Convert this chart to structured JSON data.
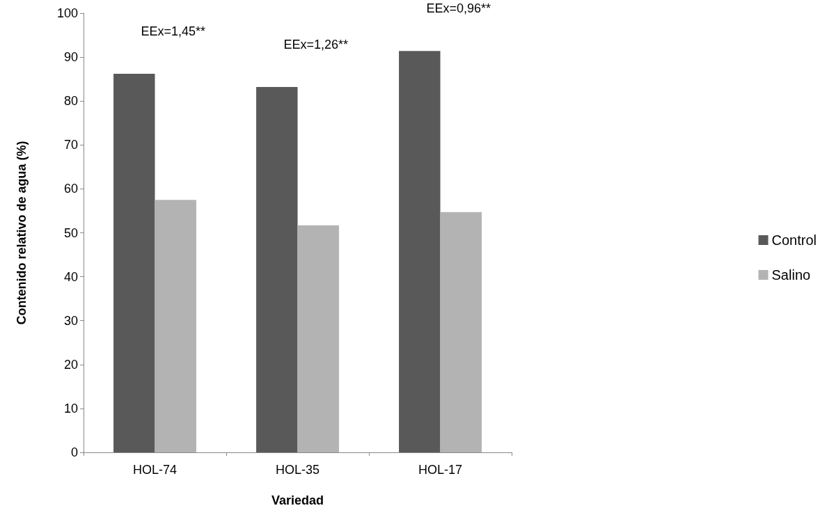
{
  "chart_data": {
    "type": "bar",
    "xlabel": "Variedad",
    "ylabel": "Contenido relativo de agua (%)",
    "categories": [
      "HOL-74",
      "HOL-35",
      "HOL-17"
    ],
    "series": [
      {
        "name": "Control",
        "color": "#595959",
        "values": [
          86.2,
          83.2,
          91.4
        ]
      },
      {
        "name": "Salino",
        "color": "#b3b3b3",
        "values": [
          57.5,
          51.7,
          54.7
        ]
      }
    ],
    "ylim": [
      0,
      100
    ],
    "yticks": [
      0,
      10,
      20,
      30,
      40,
      50,
      60,
      70,
      80,
      90,
      100
    ],
    "grid": false,
    "legend": "right",
    "annotations": [
      "EEx=1,45**",
      "EEx=1,26**",
      "EEx=0,96**"
    ]
  }
}
